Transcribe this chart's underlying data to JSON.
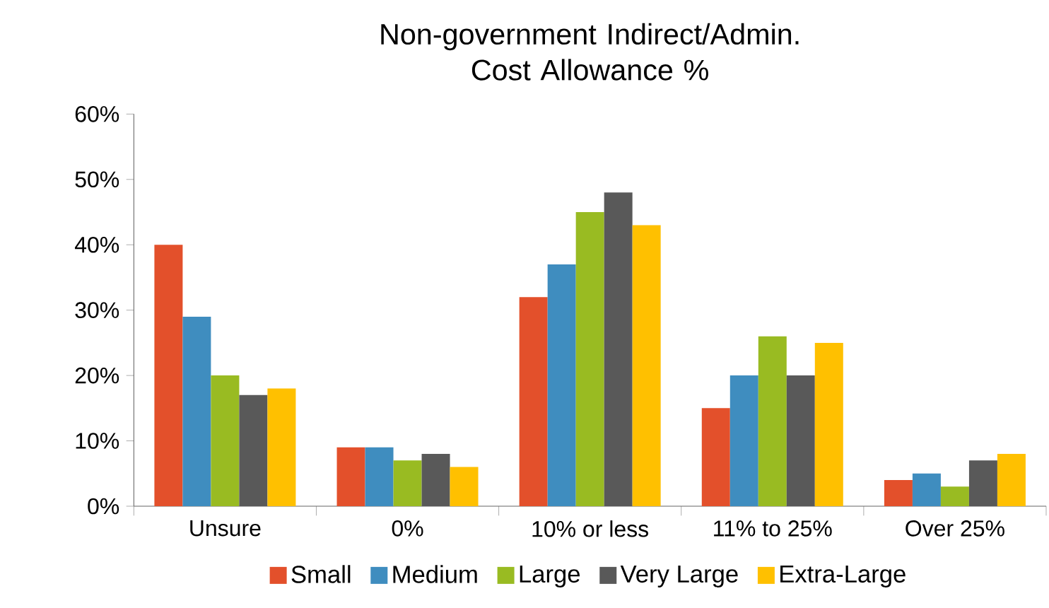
{
  "chart_data": {
    "type": "bar",
    "title": "Non-government Indirect/Admin. Cost Allowance %",
    "categories": [
      "Unsure",
      "0%",
      "10% or less",
      "11% to 25%",
      "Over 25%"
    ],
    "series": [
      {
        "name": "Small",
        "color": "#e3502b",
        "values": [
          40,
          9,
          32,
          15,
          4
        ]
      },
      {
        "name": "Medium",
        "color": "#3f8dbf",
        "values": [
          29,
          9,
          37,
          20,
          5
        ]
      },
      {
        "name": "Large",
        "color": "#99bb22",
        "values": [
          20,
          7,
          45,
          26,
          3
        ]
      },
      {
        "name": "Very Large",
        "color": "#595959",
        "values": [
          17,
          8,
          48,
          20,
          7
        ]
      },
      {
        "name": "Extra-Large",
        "color": "#ffc000",
        "values": [
          18,
          6,
          43,
          25,
          8
        ]
      }
    ],
    "ylim": [
      0,
      60
    ],
    "yticks": [
      {
        "value": 0,
        "label": "0%"
      },
      {
        "value": 10,
        "label": "10%"
      },
      {
        "value": 20,
        "label": "20%"
      },
      {
        "value": 30,
        "label": "30%"
      },
      {
        "value": 40,
        "label": "40%"
      },
      {
        "value": 50,
        "label": "50%"
      },
      {
        "value": 60,
        "label": "60%"
      }
    ],
    "legend": "bottom"
  }
}
